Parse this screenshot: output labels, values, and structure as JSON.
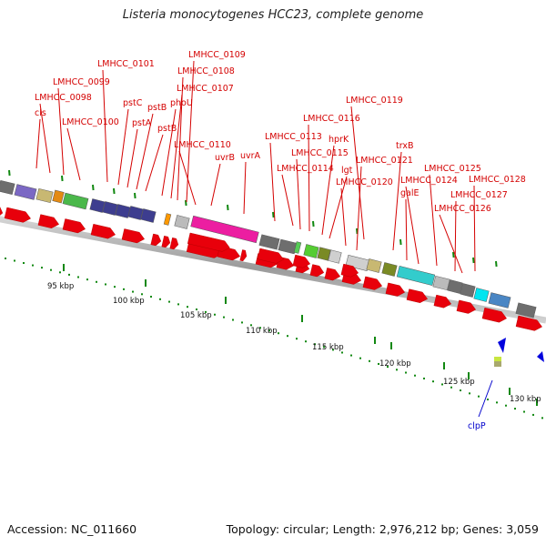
{
  "title": "Listeria monocytogenes HCC23, complete genome",
  "footer": {
    "accession": "Accession: NC_011660",
    "summary": "Topology: circular; Length: 2,976,212 bp; Genes: 3,059"
  },
  "colors": {
    "gene_label": "#d40000",
    "highlight_label": "#0000cc",
    "arrow_red": "#e8000b",
    "backbone": "#a8a8a8",
    "tick": "#118811"
  },
  "scale_labels": [
    "95 kbp",
    "100 kbp",
    "105 kbp",
    "110 kbp",
    "115 kbp",
    "120 kbp",
    "125 kbp",
    "130 kbp"
  ],
  "gene_labels": [
    "cls",
    "LMHCC_0098",
    "LMHCC_0099",
    "LMHCC_0100",
    "LMHCC_0101",
    "pstC",
    "pstA",
    "pstB",
    "pstB",
    "phoU",
    "LMHCC_0107",
    "LMHCC_0108",
    "LMHCC_0109",
    "LMHCC_0110",
    "uvrB",
    "uvrA",
    "LMHCC_0113",
    "LMHCC_0114",
    "LMHCC_0115",
    "LMHCC_0116",
    "hprK",
    "lgt",
    "LMHCC_0119",
    "LMHCC_0120",
    "LMHCC_0121",
    "trxB",
    "galE",
    "LMHCC_0124",
    "LMHCC_0125",
    "LMHCC_0126",
    "LMHCC_0127",
    "LMHCC_0128"
  ],
  "highlight_labels": [
    "clpP"
  ]
}
